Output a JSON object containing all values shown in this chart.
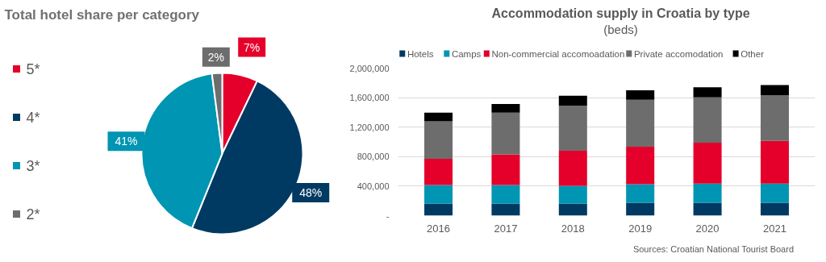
{
  "chart_data": [
    {
      "type": "pie",
      "title": "Total hotel share per category",
      "categories": [
        "5*",
        "4*",
        "3*",
        "2*"
      ],
      "values": [
        7,
        48,
        41,
        2
      ],
      "colors": [
        "#e4002b",
        "#003a63",
        "#0095b3",
        "#6d6d6d"
      ],
      "value_labels": [
        "7%",
        "48%",
        "41%",
        "2%"
      ],
      "legend": "left"
    },
    {
      "type": "bar",
      "title": "Accommodation supply in Croatia by type",
      "subtitle": "(beds)",
      "categories": [
        "2016",
        "2017",
        "2018",
        "2019",
        "2020",
        "2021"
      ],
      "stacked": true,
      "legend": "top",
      "grid": "y",
      "ylim": [
        0,
        2000000
      ],
      "yticks": [
        {
          "value": 0,
          "label": "-"
        },
        {
          "value": 400000,
          "label": "400,000"
        },
        {
          "value": 800000,
          "label": "800,000"
        },
        {
          "value": 1200000,
          "label": "1,200,000"
        },
        {
          "value": 1600000,
          "label": "1,600,000"
        },
        {
          "value": 2000000,
          "label": "2,000,000"
        }
      ],
      "series": [
        {
          "name": "Hotels",
          "color": "#003a63",
          "values": [
            165000,
            165000,
            165000,
            175000,
            175000,
            175000
          ]
        },
        {
          "name": "Camps",
          "color": "#0095b3",
          "values": [
            250000,
            250000,
            240000,
            250000,
            260000,
            260000
          ]
        },
        {
          "name": "Non-commercial accomoadation",
          "color": "#e4002b",
          "values": [
            355000,
            415000,
            475000,
            510000,
            555000,
            580000
          ]
        },
        {
          "name": "Private accomodation",
          "color": "#6d6d6d",
          "values": [
            510000,
            565000,
            610000,
            635000,
            615000,
            615000
          ]
        },
        {
          "name": "Other",
          "color": "#000000",
          "values": [
            115000,
            120000,
            135000,
            130000,
            135000,
            140000
          ]
        }
      ],
      "annotations": [
        "Sources: Croatian National Tourist Board"
      ]
    }
  ]
}
